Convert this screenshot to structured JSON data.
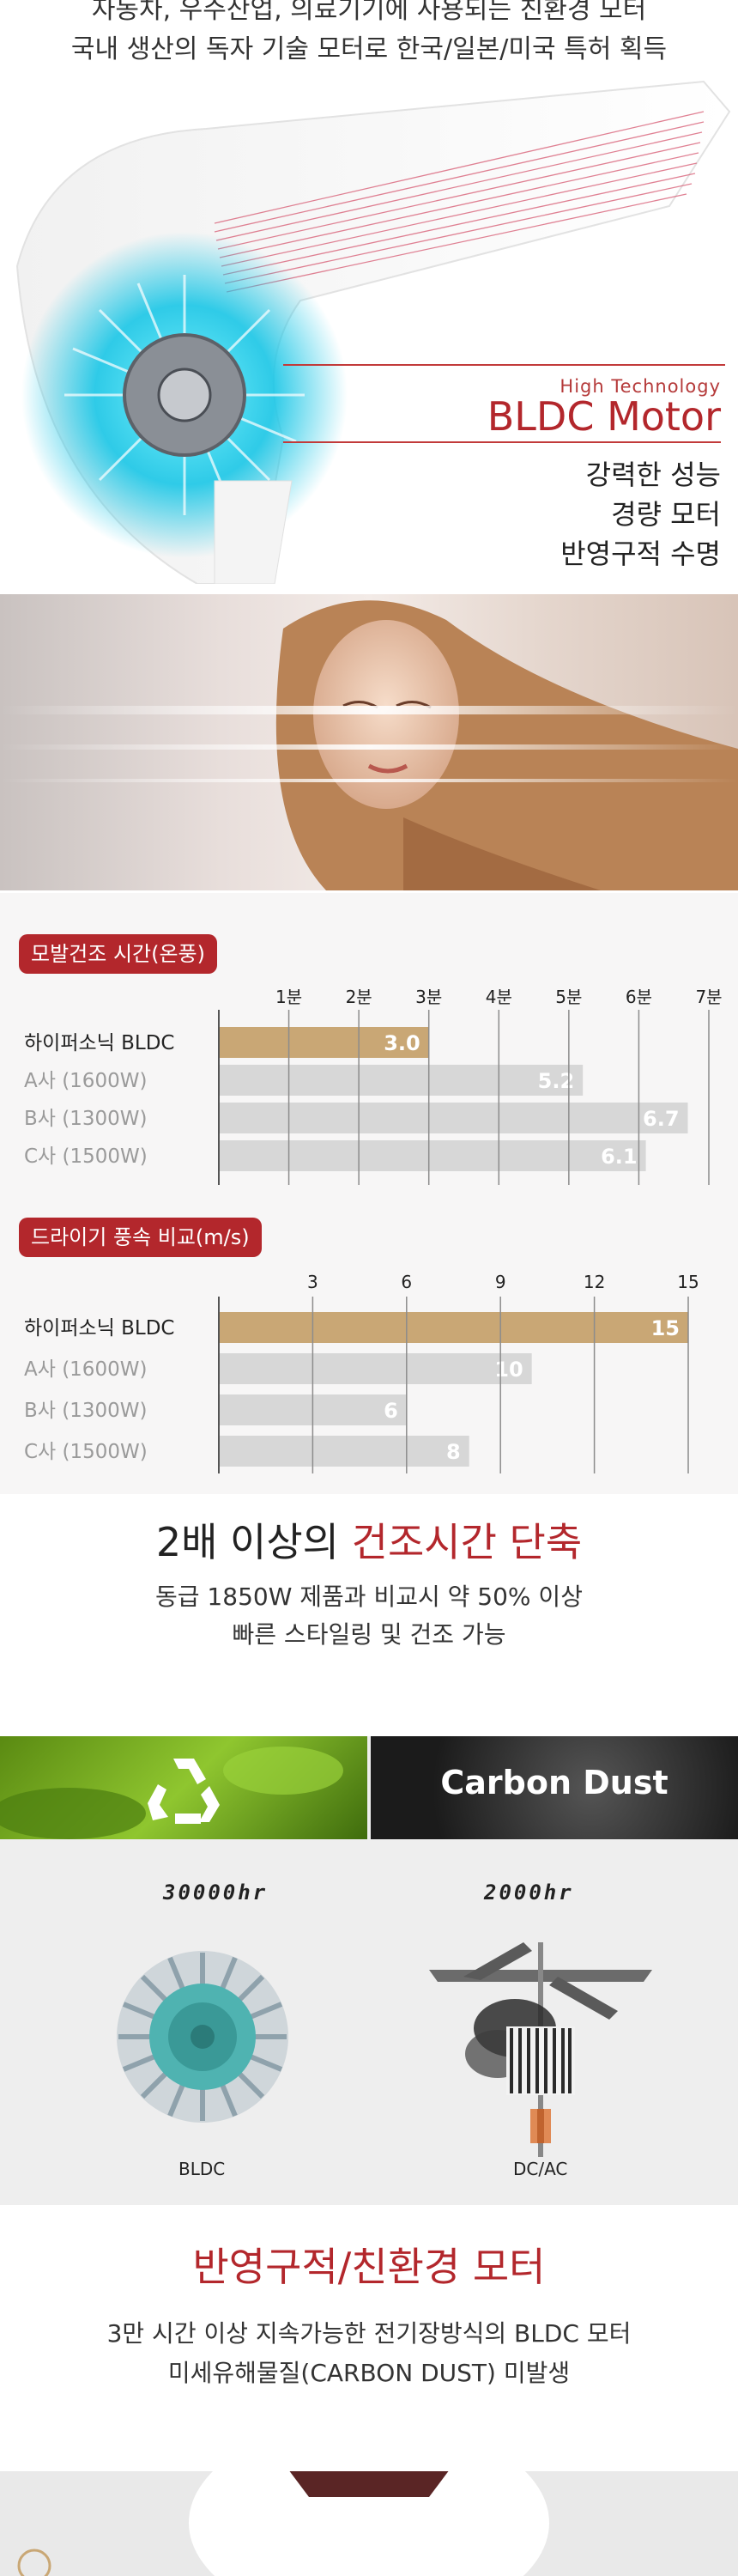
{
  "intro": {
    "line1": "자동차, 우주산업, 의료기기에 사용되는 친환경 모터",
    "line2": "국내 생산의 독자 기술 모터로 한국/일본/미국 특허 획득"
  },
  "motor": {
    "subtitle": "High Technology",
    "title": "BLDC Motor",
    "features": [
      "강력한 성능",
      "경량 모터",
      "반영구적 수명"
    ]
  },
  "colors": {
    "accent": "#b3272c",
    "highlight_bar": "#c9a775",
    "other_bar": "#d7d7d7"
  },
  "chart_data": [
    {
      "type": "bar",
      "title": "모발건조 시간(온풍)",
      "orientation": "horizontal",
      "categories": [
        "하이퍼소닉 BLDC",
        "A사 (1600W)",
        "B사 (1300W)",
        "C사 (1500W)"
      ],
      "values": [
        3.0,
        5.2,
        6.7,
        6.1
      ],
      "value_labels": [
        "3.0",
        "5.2",
        "6.7",
        "6.1"
      ],
      "tick_labels": [
        "1분",
        "2분",
        "3분",
        "4분",
        "5분",
        "6분",
        "7분"
      ],
      "xlim": [
        0,
        7
      ],
      "grid": true
    },
    {
      "type": "bar",
      "title": "드라이기 풍속 비교(m/s)",
      "orientation": "horizontal",
      "categories": [
        "하이퍼소닉 BLDC",
        "A사 (1600W)",
        "B사 (1300W)",
        "C사 (1500W)"
      ],
      "values": [
        15,
        10,
        6,
        8
      ],
      "value_labels": [
        "15",
        "10",
        "6",
        "8"
      ],
      "tick_labels": [
        "3",
        "6",
        "9",
        "12",
        "15"
      ],
      "xlim": [
        0,
        15
      ],
      "grid": true
    }
  ],
  "summary": {
    "heading_plain": "2배 이상의 ",
    "heading_accent": "건조시간 단축",
    "p1": "동급 1850W 제품과 비교시 약 50% 이상",
    "p2": "빠른 스타일링 및 건조 가능"
  },
  "compare": {
    "right_banner": "Carbon Dust",
    "left_hours": "30000hr",
    "right_hours": "2000hr",
    "left_caption": "BLDC",
    "right_caption": "DC/AC"
  },
  "eco": {
    "heading": "반영구적/친환경 모터",
    "p1": "3만 시간 이상 지속가능한 전기장방식의 BLDC 모터",
    "p2": "미세유해물질(CARBON DUST) 미발생"
  }
}
